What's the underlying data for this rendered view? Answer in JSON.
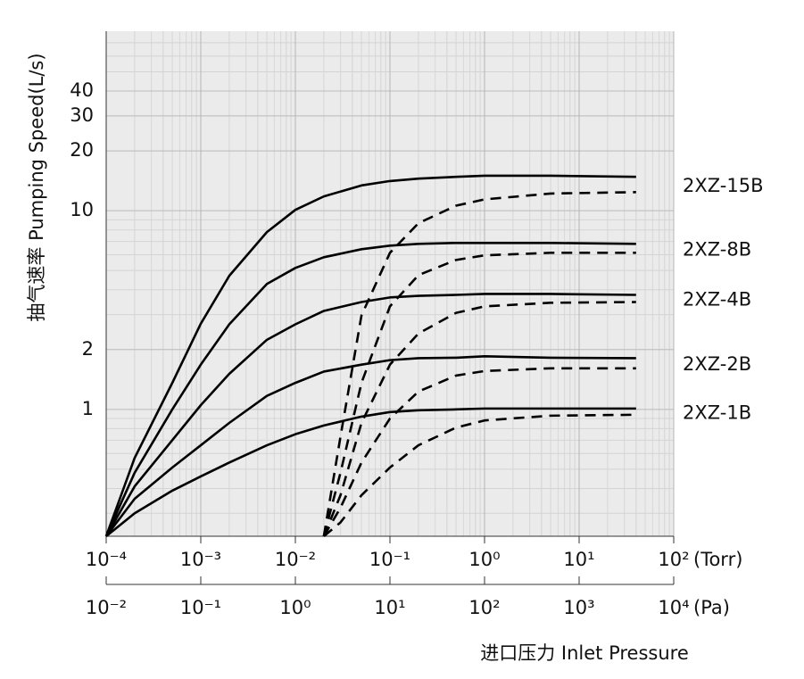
{
  "chart_data": {
    "type": "line",
    "y_title": "抽气速率  Pumping Speed(L/s)",
    "x_title": "进口压力  Inlet Pressure",
    "x_unit": "(Torr)",
    "x2_unit": "(Pa)",
    "xscale": "log",
    "yscale": "log",
    "grid": true,
    "xlim": [
      0.0001,
      100
    ],
    "xticks": [
      {
        "value": 0.0001,
        "label": "10⁻⁴"
      },
      {
        "value": 0.001,
        "label": "10⁻³"
      },
      {
        "value": 0.01,
        "label": "10⁻²"
      },
      {
        "value": 0.1,
        "label": "10⁻¹"
      },
      {
        "value": 1,
        "label": "10⁰"
      },
      {
        "value": 10,
        "label": "10¹"
      },
      {
        "value": 100,
        "label": "10²"
      }
    ],
    "x2lim": [
      0.01,
      10000
    ],
    "x2ticks": [
      {
        "value": 0.01,
        "label": "10⁻²"
      },
      {
        "value": 0.1,
        "label": "10⁻¹"
      },
      {
        "value": 1,
        "label": "10⁰"
      },
      {
        "value": 10,
        "label": "10¹"
      },
      {
        "value": 100,
        "label": "10²"
      },
      {
        "value": 1000,
        "label": "10³"
      },
      {
        "value": 10000,
        "label": "10⁴"
      }
    ],
    "ylim": [
      0.23,
      80
    ],
    "yticks": [
      1,
      2,
      10,
      20,
      30,
      40
    ],
    "x": [
      0.0001,
      0.0002,
      0.0005,
      0.001,
      0.002,
      0.005,
      0.01,
      0.02,
      0.05,
      0.1,
      0.2,
      0.5,
      1,
      5,
      40
    ],
    "x_dashed": [
      0.02,
      0.03,
      0.05,
      0.1,
      0.2,
      0.5,
      1,
      5,
      40
    ],
    "series": [
      {
        "name": "2XZ-15B",
        "color": "#000000",
        "values": [
          0.23,
          0.57,
          1.36,
          2.7,
          4.7,
          7.8,
          10.1,
          11.8,
          13.4,
          14.1,
          14.5,
          14.8,
          15,
          15,
          14.8
        ],
        "dashed_values": [
          0.23,
          0.73,
          2.97,
          6.14,
          8.65,
          10.6,
          11.4,
          12.2,
          12.4
        ]
      },
      {
        "name": "2XZ-8B",
        "color": "#000000",
        "values": [
          0.23,
          0.48,
          1.0,
          1.68,
          2.68,
          4.28,
          5.15,
          5.83,
          6.4,
          6.67,
          6.81,
          6.88,
          6.88,
          6.88,
          6.81
        ],
        "dashed_values": [
          0.23,
          0.48,
          1.36,
          3.3,
          4.74,
          5.65,
          5.96,
          6.14,
          6.14
        ]
      },
      {
        "name": "2XZ-4B",
        "color": "#000000",
        "values": [
          0.23,
          0.41,
          0.7,
          1.05,
          1.51,
          2.24,
          2.68,
          3.13,
          3.47,
          3.66,
          3.73,
          3.77,
          3.81,
          3.81,
          3.77
        ],
        "dashed_values": [
          0.23,
          0.37,
          0.855,
          1.68,
          2.41,
          3.06,
          3.3,
          3.44,
          3.47
        ]
      },
      {
        "name": "2XZ-2B",
        "color": "#000000",
        "values": [
          0.23,
          0.355,
          0.51,
          0.66,
          0.855,
          1.17,
          1.36,
          1.55,
          1.68,
          1.77,
          1.81,
          1.82,
          1.85,
          1.82,
          1.81
        ],
        "dashed_values": [
          0.23,
          0.32,
          0.54,
          0.9,
          1.23,
          1.48,
          1.56,
          1.61,
          1.61
        ]
      },
      {
        "name": "2XZ-1B",
        "color": "#000000",
        "values": [
          0.23,
          0.3,
          0.39,
          0.46,
          0.54,
          0.66,
          0.75,
          0.83,
          0.92,
          0.97,
          0.99,
          1.0,
          1.01,
          1.01,
          1.01
        ],
        "dashed_values": [
          0.23,
          0.27,
          0.37,
          0.51,
          0.66,
          0.81,
          0.88,
          0.93,
          0.94
        ]
      }
    ]
  }
}
